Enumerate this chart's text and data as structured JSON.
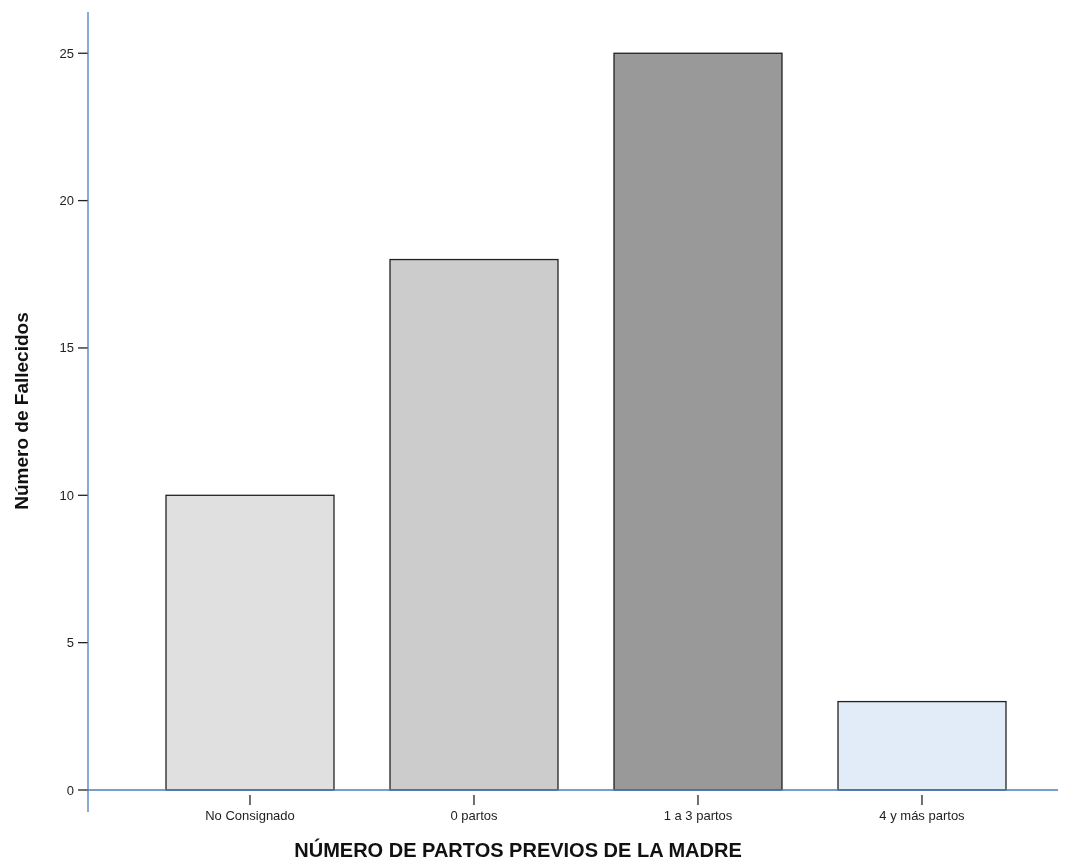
{
  "chart_data": {
    "type": "bar",
    "xlabel": "NÚMERO DE PARTOS PREVIOS DE LA MADRE",
    "ylabel": "Número de Fallecidos",
    "categories": [
      "No Consignado",
      "0 partos",
      "1 a 3 partos",
      "4 y más partos"
    ],
    "values": [
      10,
      18,
      25,
      3
    ],
    "colors": [
      "#e0e0e0",
      "#cccccc",
      "#999999",
      "#e1ecf8"
    ],
    "ylim": [
      0,
      26.4
    ],
    "yticks": [
      0,
      5,
      10,
      15,
      20,
      25
    ],
    "grid": false
  }
}
